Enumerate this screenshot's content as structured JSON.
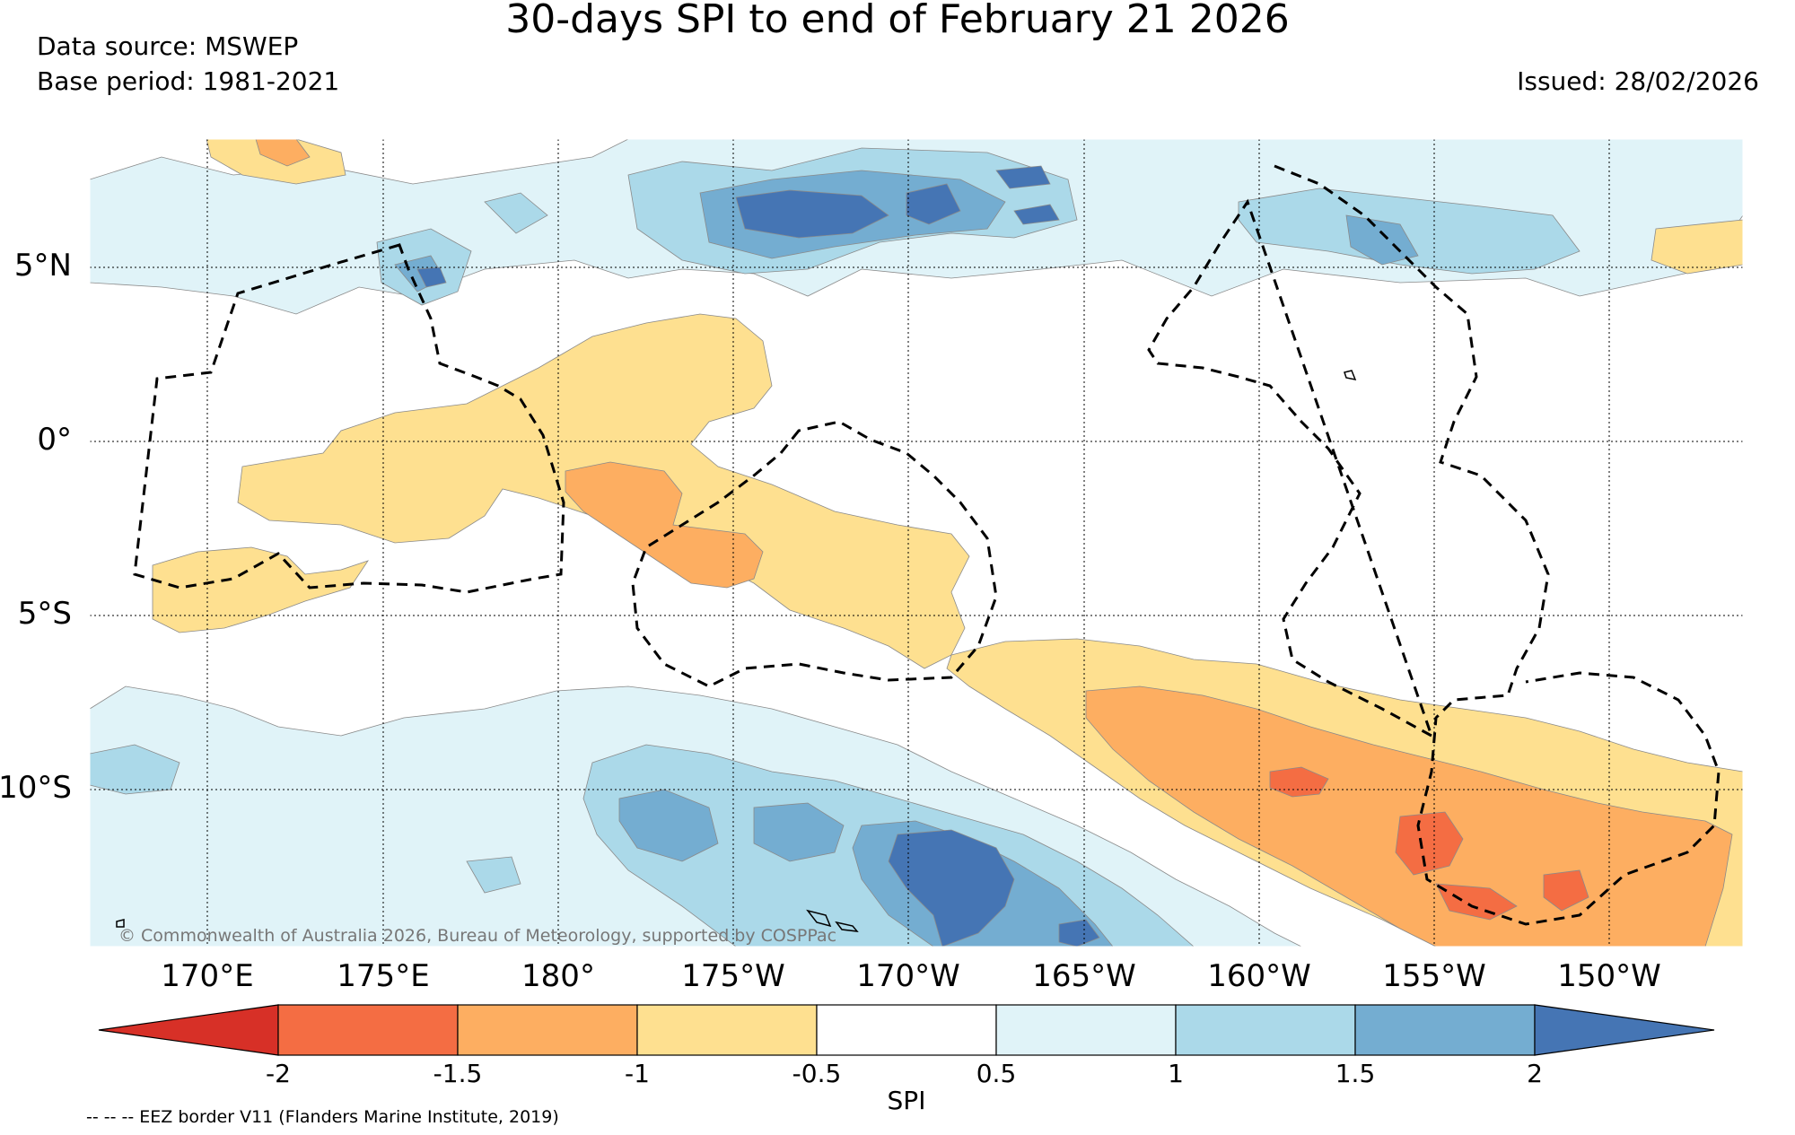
{
  "header": {
    "title": "30-days SPI to end of February 21 2026",
    "data_source": "Data source: MSWEP",
    "base_period": "Base period: 1981-2021",
    "issued": "Issued: 28/02/2026"
  },
  "map": {
    "lon_labels": [
      "170°E",
      "175°E",
      "180°",
      "175°W",
      "170°W",
      "165°W",
      "160°W",
      "155°W",
      "150°W"
    ],
    "lat_labels": [
      "5°N",
      "0°",
      "5°S",
      "10°S"
    ],
    "copyright": "© Commonwealth of Australia 2026, Bureau of Meteorology, supported by COSPPac",
    "regions": [
      {
        "category": "-1 to -0.5",
        "area": "central band, 0° to 5°S, 175°E to 168°W"
      },
      {
        "category": "-1.5 to -1",
        "area": "near 178°W to 174°W, 1°S to 4°S"
      },
      {
        "category": "-1 to -0.5",
        "area": "southeast band, 6°S to 14°S, 168°W to 146°W"
      },
      {
        "category": "-1.5 to -1",
        "area": "7°S to 14°S, 163°W to 146°W"
      },
      {
        "category": "< -1.5",
        "area": "around 155°W, 12°S to 13°S"
      },
      {
        "category": "0.5 to 2",
        "area": "northern band, 4°N to 8°N, 175°W to 165°W"
      },
      {
        "category": "0.5 to 2",
        "area": "southwest region, 8°S to 14°S, 177°E to 162°W"
      }
    ]
  },
  "colorbar": {
    "ticks": [
      "-2",
      "-1.5",
      "-1",
      "-0.5",
      "0.5",
      "1",
      "1.5",
      "2"
    ],
    "colors": [
      "#d73027",
      "#f46d43",
      "#fdae61",
      "#fee090",
      "#ffffff",
      "#e0f3f8",
      "#abd9e9",
      "#74add1",
      "#4575b4"
    ],
    "label": "SPI"
  },
  "legend": {
    "eez_note": "-- -- -- EEZ border V11 (Flanders Marine Institute, 2019)"
  }
}
